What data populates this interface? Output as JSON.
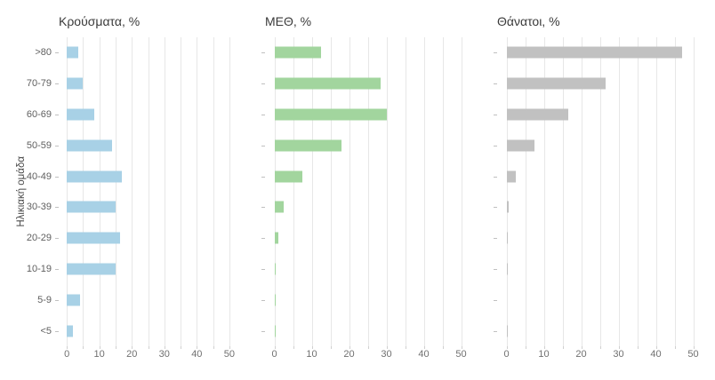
{
  "chart_data": {
    "type": "bar",
    "orientation": "horizontal",
    "ylabel": "Ηλικιακή ομάδα",
    "categories": [
      ">80",
      "70-79",
      "60-69",
      "50-59",
      "40-49",
      "30-39",
      "20-29",
      "10-19",
      "5-9",
      "<5"
    ],
    "x_ticks": [
      0,
      10,
      20,
      30,
      40,
      50
    ],
    "xlim": [
      0,
      50
    ],
    "grid": "vertical minor+major every 5, light gray on white",
    "panels": [
      {
        "title": "Κρούσματα, %",
        "color": "#a8d1e6",
        "values": [
          3.5,
          5,
          8.5,
          14,
          17,
          15,
          16.5,
          15,
          4,
          2
        ]
      },
      {
        "title": "ΜΕΘ, %",
        "color": "#a2d59e",
        "values": [
          12.5,
          28.5,
          30,
          18,
          7.5,
          2.5,
          1,
          0.2,
          0.2,
          0.2
        ]
      },
      {
        "title": "Θάνατοι, %",
        "color": "#c1c1c1",
        "values": [
          47,
          26.5,
          16.5,
          7.5,
          2.5,
          0.6,
          0.15,
          0.1,
          0,
          0.1
        ]
      }
    ]
  }
}
